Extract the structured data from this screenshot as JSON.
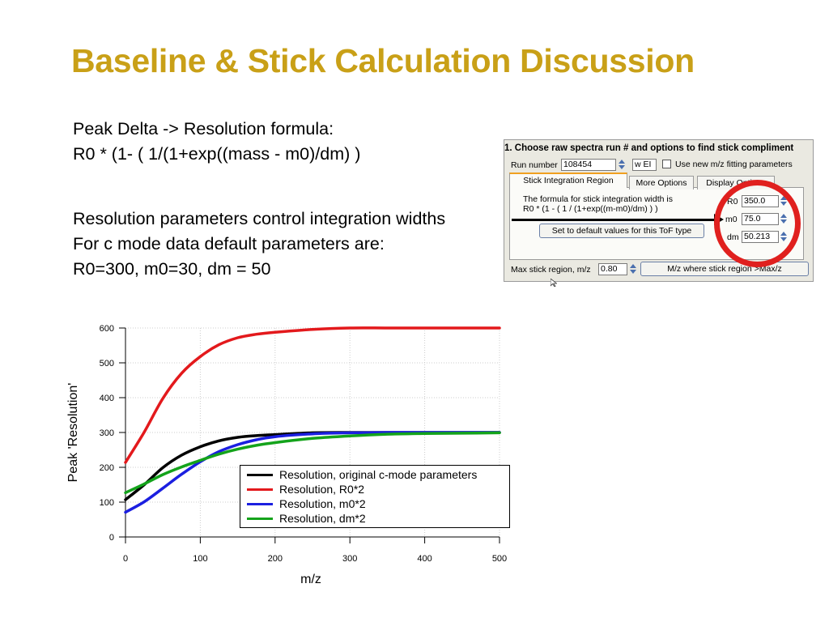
{
  "slide": {
    "title": "Baseline & Stick Calculation Discussion",
    "formula_lines": [
      "Peak Delta -> Resolution formula:",
      "R0 * (1- ( 1/(1+exp((mass - m0)/dm) )"
    ],
    "param_lines": [
      "Resolution parameters control integration widths",
      "For c mode data default parameters are:",
      "R0=300, m0=30, dm = 50"
    ]
  },
  "panel": {
    "title": "1. Choose raw spectra run # and options to find stick compliment",
    "run_label": "Run number",
    "run_value": "108454",
    "mode_value": "w EI",
    "fit_checkbox_label": "Use new m/z fitting parameters",
    "tabs": [
      "Stick Integration Region",
      "More Options",
      "Display Options"
    ],
    "formula_text_1": "The formula for stick integration width is",
    "formula_text_2": "R0 * (1 - ( 1 / (1+exp((m-m0)/dm) ) )",
    "r0_label": "R0",
    "r0_value": "350.0",
    "m0_label": "m0",
    "m0_value": "75.0",
    "dm_label": "dm",
    "dm_value": "50.213",
    "default_button": "Set to default values for this ToF type",
    "max_region_label": "Max stick region, m/z",
    "max_region_value": "0.80",
    "mz_button": "M/z where stick region >Max/z"
  },
  "chart_data": {
    "type": "line",
    "xlabel": "m/z",
    "ylabel": "Peak 'Resolution'",
    "xlim": [
      0,
      500
    ],
    "ylim": [
      0,
      600
    ],
    "xticks": [
      0,
      100,
      200,
      300,
      400,
      500
    ],
    "yticks": [
      0,
      100,
      200,
      300,
      400,
      500,
      600
    ],
    "grid": true,
    "legend_position": "lower-right",
    "x": [
      0,
      25,
      50,
      75,
      100,
      125,
      150,
      175,
      200,
      250,
      300,
      350,
      400,
      450,
      500
    ],
    "series": [
      {
        "name": "Resolution, original c-mode parameters",
        "color": "#000000",
        "values": [
          107,
          150,
          199,
          235,
          259,
          276,
          286,
          291,
          294,
          299,
          300,
          300,
          300,
          300,
          300
        ]
      },
      {
        "name": "Resolution, R0*2",
        "color": "#e3191c",
        "values": [
          214,
          301,
          398,
          470,
          518,
          552,
          572,
          582,
          588,
          596,
          600,
          600,
          600,
          600,
          600
        ]
      },
      {
        "name": "Resolution, m0*2",
        "color": "#1b1fe0",
        "values": [
          71,
          101,
          140,
          180,
          216,
          245,
          265,
          279,
          288,
          296,
          299,
          300,
          300,
          300,
          300
        ]
      },
      {
        "name": "Resolution, dm*2",
        "color": "#14a31b",
        "values": [
          127,
          152,
          179,
          201,
          220,
          238,
          252,
          263,
          271,
          283,
          290,
          295,
          297,
          298,
          299
        ]
      }
    ]
  }
}
